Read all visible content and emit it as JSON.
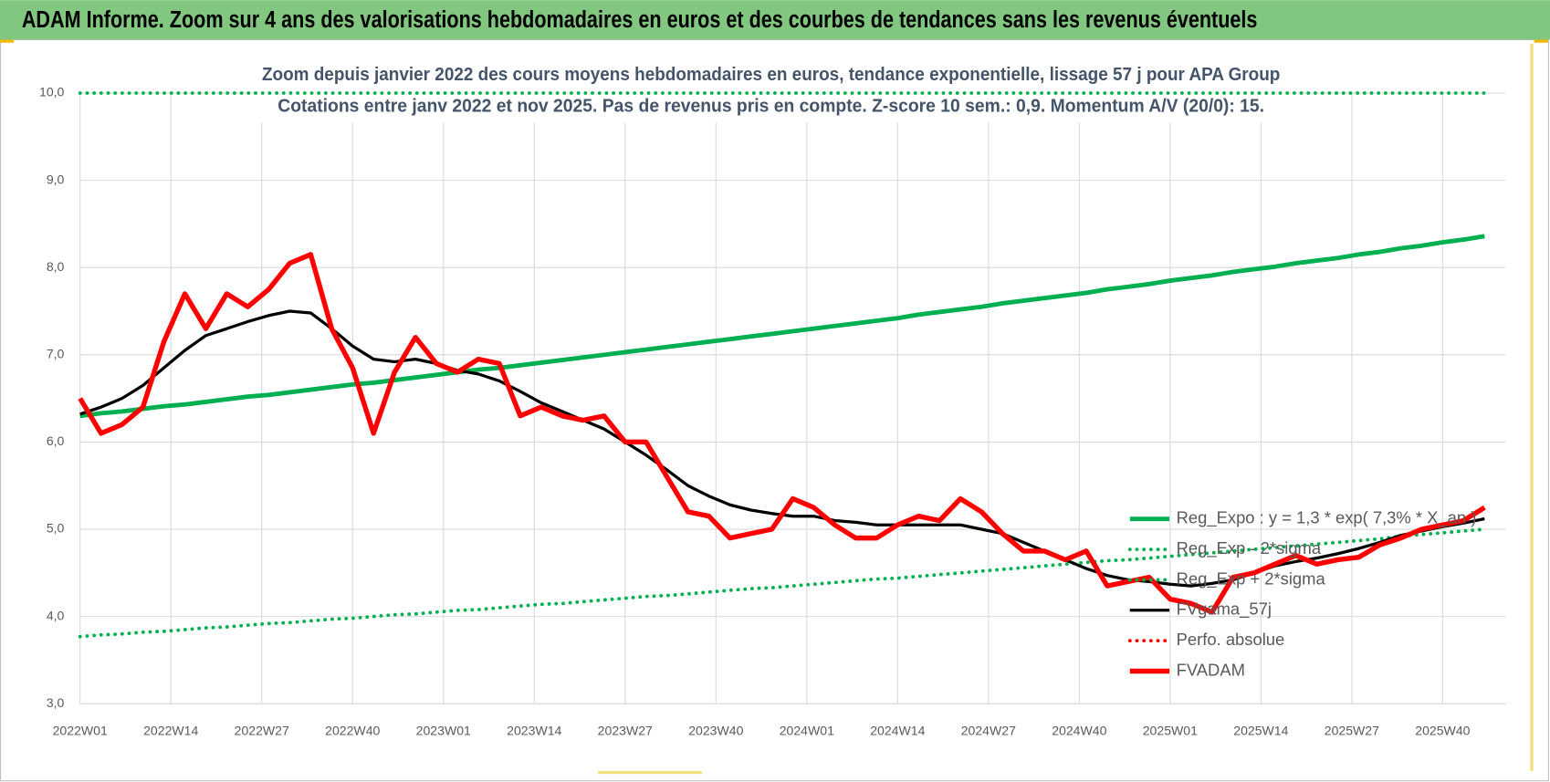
{
  "chart_data": {
    "type": "line",
    "title": "ADAM Informe. Zoom sur 4 ans des valorisations hebdomadaires en euros et des courbes de tendances sans les revenus éventuels",
    "subtitle": [
      "Zoom depuis janvier 2022 des cours moyens hebdomadaires en euros, tendance exponentielle, lissage 57 j pour APA Group",
      "Cotations entre janv 2022 et nov 2025. Pas de revenus pris en compte. Z-score 10 sem.: 0,9. Momentum A/V (20/0): 15."
    ],
    "x": [
      0,
      3,
      6,
      9,
      12,
      15,
      18,
      21,
      24,
      27,
      30,
      33,
      36,
      39,
      42,
      45,
      48,
      51,
      54,
      57,
      60,
      63,
      66,
      69,
      72,
      75,
      78,
      81,
      84,
      87,
      90,
      93,
      96,
      99,
      102,
      105,
      108,
      111,
      114,
      117,
      120,
      123,
      126,
      129,
      132,
      135,
      138,
      141,
      144,
      147,
      150,
      153,
      156,
      159,
      162,
      165,
      168,
      171,
      174,
      177,
      180,
      183,
      186,
      189,
      192,
      195,
      198,
      201
    ],
    "xlim": [
      0,
      204
    ],
    "xticks": [
      {
        "value": 0,
        "label": "2022W01"
      },
      {
        "value": 13,
        "label": "2022W14"
      },
      {
        "value": 26,
        "label": "2022W27"
      },
      {
        "value": 39,
        "label": "2022W40"
      },
      {
        "value": 52,
        "label": "2023W01"
      },
      {
        "value": 65,
        "label": "2023W14"
      },
      {
        "value": 78,
        "label": "2023W27"
      },
      {
        "value": 91,
        "label": "2023W40"
      },
      {
        "value": 104,
        "label": "2024W01"
      },
      {
        "value": 117,
        "label": "2024W14"
      },
      {
        "value": 130,
        "label": "2024W27"
      },
      {
        "value": 143,
        "label": "2024W40"
      },
      {
        "value": 156,
        "label": "2025W01"
      },
      {
        "value": 169,
        "label": "2025W14"
      },
      {
        "value": 182,
        "label": "2025W27"
      },
      {
        "value": 195,
        "label": "2025W40"
      }
    ],
    "ylim": [
      3,
      10
    ],
    "yticks": [
      {
        "value": 3,
        "label": "3,0"
      },
      {
        "value": 4,
        "label": "4,0"
      },
      {
        "value": 5,
        "label": "5,0"
      },
      {
        "value": 6,
        "label": "6,0"
      },
      {
        "value": 7,
        "label": "7,0"
      },
      {
        "value": 8,
        "label": "8,0"
      },
      {
        "value": 9,
        "label": "9,0"
      },
      {
        "value": 10,
        "label": "10,0"
      }
    ],
    "grid": true,
    "legend": "bottom-right",
    "series": [
      {
        "name": "Reg_Expo : y = 1,3 * exp( 7,3% *  X_an )",
        "color": "#00b050",
        "style": "solid",
        "values": [
          6.3,
          6.33,
          6.35,
          6.38,
          6.41,
          6.43,
          6.46,
          6.49,
          6.52,
          6.54,
          6.57,
          6.6,
          6.63,
          6.66,
          6.68,
          6.71,
          6.74,
          6.77,
          6.8,
          6.83,
          6.85,
          6.88,
          6.91,
          6.94,
          6.97,
          7.0,
          7.03,
          7.06,
          7.09,
          7.12,
          7.15,
          7.18,
          7.21,
          7.24,
          7.27,
          7.3,
          7.33,
          7.36,
          7.39,
          7.42,
          7.46,
          7.49,
          7.52,
          7.55,
          7.59,
          7.62,
          7.65,
          7.68,
          7.71,
          7.75,
          7.78,
          7.81,
          7.85,
          7.88,
          7.91,
          7.95,
          7.98,
          8.01,
          8.05,
          8.08,
          8.11,
          8.15,
          8.18,
          8.22,
          8.25,
          8.29,
          8.32,
          8.36
        ]
      },
      {
        "name": "Reg_Exp - 2*sigma",
        "color": "#00b050",
        "style": "dotted",
        "values": [
          3.77,
          3.79,
          3.8,
          3.82,
          3.83,
          3.85,
          3.87,
          3.88,
          3.9,
          3.92,
          3.93,
          3.95,
          3.97,
          3.98,
          4.0,
          4.02,
          4.03,
          4.05,
          4.07,
          4.08,
          4.1,
          4.12,
          4.14,
          4.15,
          4.17,
          4.19,
          4.21,
          4.23,
          4.24,
          4.26,
          4.28,
          4.3,
          4.32,
          4.33,
          4.35,
          4.37,
          4.39,
          4.41,
          4.43,
          4.44,
          4.46,
          4.48,
          4.5,
          4.52,
          4.54,
          4.56,
          4.58,
          4.6,
          4.62,
          4.64,
          4.65,
          4.67,
          4.69,
          4.71,
          4.73,
          4.75,
          4.77,
          4.79,
          4.81,
          4.83,
          4.85,
          4.87,
          4.89,
          4.92,
          4.94,
          4.96,
          4.98,
          5.0
        ]
      },
      {
        "name": "Reg_Exp + 2*sigma",
        "color": "#00b050",
        "style": "dotted",
        "values": [
          10,
          10,
          10,
          10,
          10,
          10,
          10,
          10,
          10,
          10,
          10,
          10,
          10,
          10,
          10,
          10,
          10,
          10,
          10,
          10,
          10,
          10,
          10,
          10,
          10,
          10,
          10,
          10,
          10,
          10,
          10,
          10,
          10,
          10,
          10,
          10,
          10,
          10,
          10,
          10,
          10,
          10,
          10,
          10,
          10,
          10,
          10,
          10,
          10,
          10,
          10,
          10,
          10,
          10,
          10,
          10,
          10,
          10,
          10,
          10,
          10,
          10,
          10,
          10,
          10,
          10,
          10,
          10
        ]
      },
      {
        "name": "FVgama_57j",
        "color": "#000000",
        "style": "solid",
        "values": [
          6.32,
          6.4,
          6.5,
          6.65,
          6.85,
          7.05,
          7.22,
          7.3,
          7.38,
          7.45,
          7.5,
          7.48,
          7.3,
          7.1,
          6.95,
          6.92,
          6.95,
          6.9,
          6.82,
          6.78,
          6.7,
          6.58,
          6.45,
          6.35,
          6.25,
          6.15,
          6.0,
          5.85,
          5.68,
          5.5,
          5.38,
          5.28,
          5.22,
          5.18,
          5.15,
          5.15,
          5.1,
          5.08,
          5.05,
          5.05,
          5.05,
          5.05,
          5.05,
          5.0,
          4.95,
          4.85,
          4.75,
          4.65,
          4.55,
          4.47,
          4.42,
          4.4,
          4.37,
          4.35,
          4.38,
          4.42,
          4.5,
          4.58,
          4.63,
          4.67,
          4.72,
          4.78,
          4.85,
          4.93,
          4.98,
          5.03,
          5.07,
          5.12
        ]
      },
      {
        "name": "Perfo. absolue",
        "color": "#ff0000",
        "style": "dotted",
        "values": [
          null,
          null,
          null,
          null,
          null,
          null,
          null,
          null,
          null,
          null,
          null,
          null,
          null,
          null,
          null,
          null,
          null,
          null,
          null,
          null,
          null,
          null,
          null,
          null,
          null,
          null,
          null,
          null,
          null,
          null,
          null,
          null,
          null,
          null,
          null,
          null,
          null,
          null,
          null,
          null,
          null,
          null,
          null,
          null,
          null,
          null,
          null,
          null,
          null,
          null,
          null,
          null,
          null,
          null,
          null,
          null,
          null,
          null,
          null,
          null,
          null,
          null,
          null,
          null,
          null,
          null,
          null,
          null
        ]
      },
      {
        "name": "FVADAM",
        "color": "#ff0000",
        "style": "thick",
        "values": [
          6.5,
          6.1,
          6.2,
          6.4,
          7.15,
          7.7,
          7.3,
          7.7,
          7.55,
          7.75,
          8.05,
          8.15,
          7.3,
          6.85,
          6.1,
          6.8,
          7.2,
          6.9,
          6.8,
          6.95,
          6.9,
          6.3,
          6.4,
          6.3,
          6.25,
          6.3,
          6.0,
          6.0,
          5.6,
          5.2,
          5.15,
          4.9,
          4.95,
          5.0,
          5.35,
          5.25,
          5.05,
          4.9,
          4.9,
          5.05,
          5.15,
          5.1,
          5.35,
          5.2,
          4.95,
          4.75,
          4.75,
          4.65,
          4.75,
          4.35,
          4.4,
          4.45,
          4.2,
          4.15,
          4.05,
          4.45,
          4.5,
          4.6,
          4.7,
          4.6,
          4.65,
          4.68,
          4.82,
          4.9,
          5.0,
          5.05,
          5.1,
          5.25
        ]
      }
    ]
  }
}
